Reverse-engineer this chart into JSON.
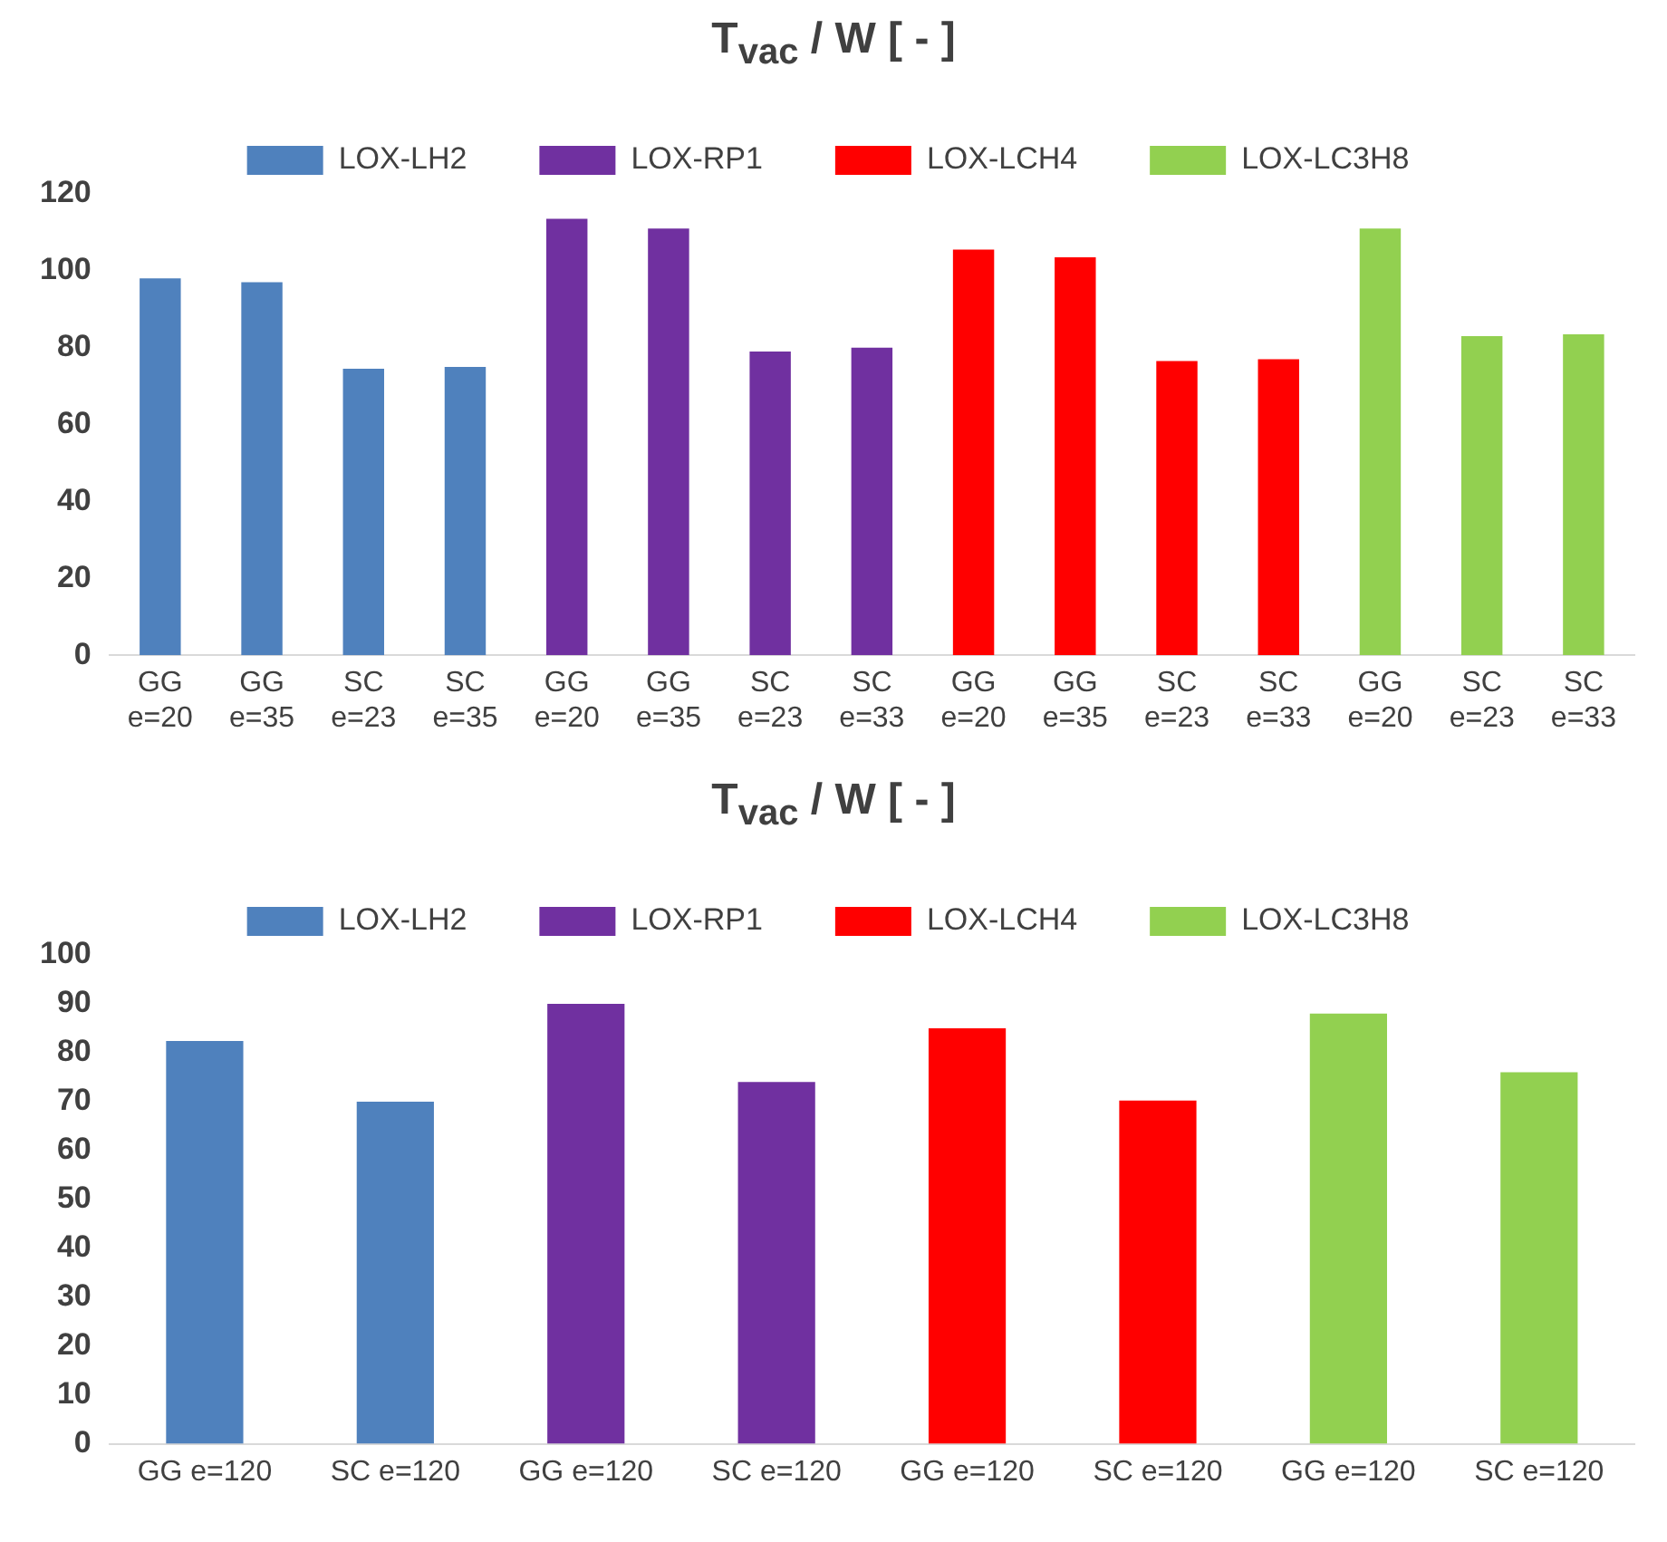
{
  "chart_data": [
    {
      "type": "bar",
      "title": "T$_{vac}$ / W  [ - ]",
      "categories": [
        "GG e=20",
        "GG e=35",
        "SC e=23",
        "SC e=35",
        "GG e=20",
        "GG e=35",
        "SC e=23",
        "SC e=33",
        "GG e=20",
        "GG e=35",
        "SC e=23",
        "SC e=33",
        "GG e=20",
        "SC e=23",
        "SC e=33"
      ],
      "series": [
        {
          "name": "LOX-LH2",
          "color": "#4f81bd",
          "values": [
            98,
            97,
            74.5,
            75,
            null,
            null,
            null,
            null,
            null,
            null,
            null,
            null,
            null,
            null,
            null
          ]
        },
        {
          "name": "LOX-RP1",
          "color": "#7030a0",
          "values": [
            null,
            null,
            null,
            null,
            113.5,
            111,
            79,
            80,
            null,
            null,
            null,
            null,
            null,
            null,
            null
          ]
        },
        {
          "name": "LOX-LCH4",
          "color": "#ff0000",
          "values": [
            null,
            null,
            null,
            null,
            null,
            null,
            null,
            null,
            105.5,
            103.5,
            76.5,
            77,
            null,
            null,
            null
          ]
        },
        {
          "name": "LOX-LC3H8",
          "color": "#92d050",
          "values": [
            null,
            null,
            null,
            null,
            null,
            null,
            null,
            null,
            null,
            null,
            null,
            null,
            111,
            83,
            83.5
          ]
        }
      ],
      "ylim": [
        0,
        120
      ],
      "yticks": [
        0,
        20,
        40,
        60,
        80,
        100,
        120
      ],
      "grid": false,
      "legend": "top"
    },
    {
      "type": "bar",
      "title": "T$_{vac}$ / W  [ - ]",
      "categories": [
        "GG e=120",
        "SC e=120",
        "GG e=120",
        "SC e=120",
        "GG e=120",
        "SC e=120",
        "GG e=120",
        "SC e=120"
      ],
      "series": [
        {
          "name": "LOX-LH2",
          "color": "#4f81bd",
          "values": [
            82.4,
            70,
            null,
            null,
            null,
            null,
            null,
            null
          ]
        },
        {
          "name": "LOX-RP1",
          "color": "#7030a0",
          "values": [
            null,
            null,
            90,
            74,
            null,
            null,
            null,
            null
          ]
        },
        {
          "name": "LOX-LCH4",
          "color": "#ff0000",
          "values": [
            null,
            null,
            null,
            null,
            85,
            70.2,
            null,
            null
          ]
        },
        {
          "name": "LOX-LC3H8",
          "color": "#92d050",
          "values": [
            null,
            null,
            null,
            null,
            null,
            null,
            88,
            76
          ]
        }
      ],
      "ylim": [
        0,
        100
      ],
      "yticks": [
        0,
        10,
        20,
        30,
        40,
        50,
        60,
        70,
        80,
        90,
        100
      ],
      "grid": false,
      "legend": "top"
    }
  ]
}
